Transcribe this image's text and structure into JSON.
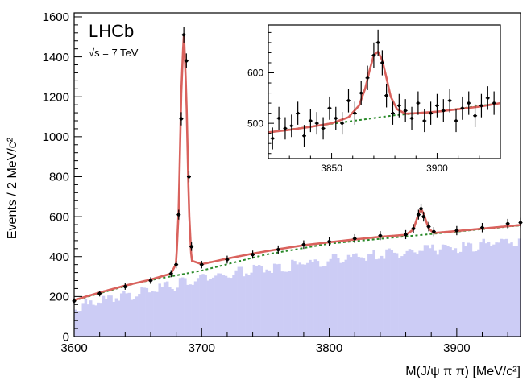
{
  "chart_data": [
    {
      "type": "line",
      "panel": "main",
      "experiment_label": "LHCb",
      "energy_label": "√s = 7 TeV",
      "energy_label_parts": {
        "sqrt": "√s",
        "rest": " = 7 TeV"
      },
      "xlabel": "M(J/ψ π π) [MeV/c²]",
      "ylabel": "Events / 2 MeV/c²",
      "xlim": [
        3600,
        3950
      ],
      "ylim": [
        0,
        1620
      ],
      "x_ticks": [
        3600,
        3700,
        3800,
        3900
      ],
      "y_ticks": [
        0,
        200,
        400,
        600,
        800,
        1000,
        1200,
        1400,
        1600
      ],
      "grid": false,
      "bin_width": 2,
      "series": [
        {
          "kind": "histogram",
          "color": "#ccccf5",
          "description": "shaded background-like distribution",
          "x": [
            3600,
            3620,
            3640,
            3660,
            3680,
            3700,
            3720,
            3740,
            3760,
            3780,
            3800,
            3820,
            3840,
            3860,
            3880,
            3900,
            3920,
            3940,
            3950
          ],
          "values": [
            150,
            185,
            215,
            245,
            270,
            300,
            320,
            340,
            355,
            375,
            395,
            410,
            420,
            435,
            445,
            455,
            470,
            490,
            495
          ]
        },
        {
          "kind": "points",
          "color": "#000000",
          "description": "data points with error bars",
          "x": [
            3600,
            3620,
            3640,
            3660,
            3676,
            3680,
            3682,
            3684,
            3686,
            3688,
            3690,
            3692,
            3700,
            3720,
            3740,
            3760,
            3780,
            3800,
            3820,
            3840,
            3860,
            3866,
            3870,
            3872,
            3874,
            3878,
            3882,
            3900,
            3920,
            3940,
            3950
          ],
          "values": [
            178,
            215,
            250,
            280,
            315,
            360,
            610,
            1090,
            1510,
            1380,
            800,
            450,
            360,
            385,
            410,
            435,
            460,
            475,
            490,
            505,
            510,
            540,
            610,
            640,
            600,
            550,
            525,
            530,
            545,
            565,
            570
          ]
        },
        {
          "kind": "line",
          "color": "#d9625d",
          "description": "total fit",
          "x": [
            3600,
            3620,
            3640,
            3660,
            3676,
            3680,
            3682,
            3684,
            3686,
            3688,
            3690,
            3692,
            3700,
            3720,
            3740,
            3760,
            3780,
            3800,
            3820,
            3840,
            3860,
            3866,
            3870,
            3872,
            3874,
            3878,
            3882,
            3900,
            3920,
            3940,
            3950
          ],
          "values": [
            182,
            220,
            255,
            285,
            315,
            365,
            640,
            1220,
            1530,
            1200,
            640,
            380,
            362,
            390,
            415,
            437,
            457,
            472,
            486,
            499,
            509,
            535,
            615,
            640,
            615,
            540,
            518,
            528,
            540,
            552,
            558
          ]
        },
        {
          "kind": "dashed-line",
          "color": "#2a8a2a",
          "description": "background fit",
          "x": [
            3600,
            3650,
            3700,
            3750,
            3800,
            3850,
            3900,
            3950
          ],
          "values": [
            180,
            270,
            330,
            410,
            465,
            495,
            525,
            556
          ]
        }
      ]
    },
    {
      "type": "line",
      "panel": "inset",
      "xlim": [
        3820,
        3930
      ],
      "ylim": [
        430,
        695
      ],
      "x_ticks": [
        3850,
        3900
      ],
      "y_ticks": [
        500,
        600
      ],
      "grid": false,
      "series": [
        {
          "kind": "points",
          "color": "#000000",
          "x": [
            3822,
            3825,
            3828,
            3831,
            3834,
            3837,
            3840,
            3843,
            3846,
            3849,
            3852,
            3855,
            3858,
            3861,
            3864,
            3867,
            3870,
            3872,
            3874,
            3876,
            3879,
            3882,
            3885,
            3888,
            3891,
            3894,
            3897,
            3900,
            3903,
            3906,
            3909,
            3912,
            3915,
            3918,
            3921,
            3924,
            3927
          ],
          "values": [
            470,
            510,
            490,
            495,
            520,
            475,
            505,
            500,
            490,
            530,
            510,
            500,
            545,
            520,
            560,
            590,
            635,
            660,
            620,
            555,
            520,
            535,
            525,
            510,
            540,
            505,
            520,
            535,
            525,
            545,
            505,
            530,
            540,
            515,
            535,
            550,
            540
          ]
        },
        {
          "kind": "line",
          "color": "#d9625d",
          "description": "total fit",
          "x": [
            3820,
            3830,
            3840,
            3850,
            3858,
            3863,
            3866,
            3868,
            3870,
            3872,
            3874,
            3876,
            3878,
            3881,
            3885,
            3890,
            3900,
            3910,
            3920,
            3930
          ],
          "values": [
            482,
            487,
            493,
            500,
            512,
            535,
            570,
            605,
            635,
            642,
            625,
            590,
            553,
            528,
            519,
            520,
            523,
            528,
            533,
            540
          ]
        },
        {
          "kind": "dashed-line",
          "color": "#2a8a2a",
          "description": "background fit",
          "x": [
            3820,
            3850,
            3880,
            3900,
            3930
          ],
          "values": [
            482,
            499,
            516,
            523,
            540
          ]
        }
      ]
    }
  ]
}
